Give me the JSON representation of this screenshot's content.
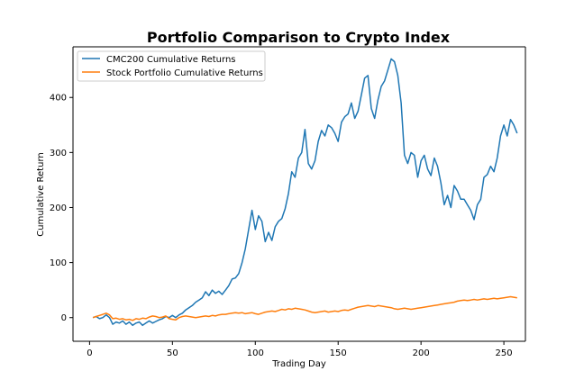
{
  "chart_data": {
    "type": "line",
    "title": "Portfolio Comparison to Crypto Index",
    "xlabel": "Trading Day",
    "ylabel": "Cumulative Return",
    "xlim": [
      -10,
      263
    ],
    "ylim": [
      -43,
      492
    ],
    "xticks": [
      0,
      50,
      100,
      150,
      200,
      250
    ],
    "yticks": [
      0,
      100,
      200,
      300,
      400
    ],
    "grid": false,
    "legend_position": "top-left",
    "series": [
      {
        "name": "CMC200 Cumulative Returns",
        "color": "#1f77b4",
        "points": [
          [
            2,
            0
          ],
          [
            4,
            2
          ],
          [
            6,
            -2
          ],
          [
            8,
            0
          ],
          [
            10,
            5
          ],
          [
            12,
            0
          ],
          [
            14,
            -12
          ],
          [
            16,
            -8
          ],
          [
            18,
            -10
          ],
          [
            20,
            -6
          ],
          [
            22,
            -12
          ],
          [
            24,
            -8
          ],
          [
            26,
            -14
          ],
          [
            28,
            -10
          ],
          [
            30,
            -8
          ],
          [
            32,
            -14
          ],
          [
            34,
            -10
          ],
          [
            36,
            -6
          ],
          [
            38,
            -10
          ],
          [
            40,
            -7
          ],
          [
            42,
            -4
          ],
          [
            44,
            -2
          ],
          [
            46,
            2
          ],
          [
            48,
            0
          ],
          [
            50,
            4
          ],
          [
            52,
            0
          ],
          [
            54,
            5
          ],
          [
            56,
            8
          ],
          [
            58,
            14
          ],
          [
            60,
            18
          ],
          [
            62,
            22
          ],
          [
            64,
            28
          ],
          [
            66,
            32
          ],
          [
            68,
            36
          ],
          [
            70,
            47
          ],
          [
            72,
            40
          ],
          [
            74,
            50
          ],
          [
            76,
            44
          ],
          [
            78,
            48
          ],
          [
            80,
            42
          ],
          [
            82,
            50
          ],
          [
            84,
            58
          ],
          [
            86,
            70
          ],
          [
            88,
            72
          ],
          [
            90,
            80
          ],
          [
            92,
            100
          ],
          [
            94,
            125
          ],
          [
            96,
            160
          ],
          [
            98,
            195
          ],
          [
            100,
            160
          ],
          [
            102,
            185
          ],
          [
            104,
            175
          ],
          [
            106,
            138
          ],
          [
            108,
            155
          ],
          [
            110,
            140
          ],
          [
            112,
            165
          ],
          [
            114,
            175
          ],
          [
            116,
            180
          ],
          [
            118,
            198
          ],
          [
            120,
            225
          ],
          [
            122,
            265
          ],
          [
            124,
            255
          ],
          [
            126,
            290
          ],
          [
            128,
            300
          ],
          [
            130,
            342
          ],
          [
            132,
            280
          ],
          [
            134,
            270
          ],
          [
            136,
            285
          ],
          [
            138,
            320
          ],
          [
            140,
            340
          ],
          [
            142,
            330
          ],
          [
            144,
            350
          ],
          [
            146,
            345
          ],
          [
            148,
            335
          ],
          [
            150,
            320
          ],
          [
            152,
            355
          ],
          [
            154,
            365
          ],
          [
            156,
            370
          ],
          [
            158,
            390
          ],
          [
            160,
            362
          ],
          [
            162,
            375
          ],
          [
            164,
            405
          ],
          [
            166,
            435
          ],
          [
            168,
            440
          ],
          [
            170,
            380
          ],
          [
            172,
            362
          ],
          [
            174,
            395
          ],
          [
            176,
            420
          ],
          [
            178,
            430
          ],
          [
            180,
            450
          ],
          [
            182,
            470
          ],
          [
            184,
            465
          ],
          [
            186,
            440
          ],
          [
            188,
            390
          ],
          [
            190,
            295
          ],
          [
            192,
            280
          ],
          [
            194,
            300
          ],
          [
            196,
            295
          ],
          [
            198,
            255
          ],
          [
            200,
            285
          ],
          [
            202,
            295
          ],
          [
            204,
            270
          ],
          [
            206,
            258
          ],
          [
            208,
            290
          ],
          [
            210,
            275
          ],
          [
            212,
            245
          ],
          [
            214,
            205
          ],
          [
            216,
            222
          ],
          [
            218,
            200
          ],
          [
            220,
            240
          ],
          [
            222,
            230
          ],
          [
            224,
            215
          ],
          [
            226,
            215
          ],
          [
            228,
            205
          ],
          [
            230,
            195
          ],
          [
            232,
            178
          ],
          [
            234,
            205
          ],
          [
            236,
            215
          ],
          [
            238,
            255
          ],
          [
            240,
            260
          ],
          [
            242,
            275
          ],
          [
            244,
            265
          ],
          [
            246,
            290
          ],
          [
            248,
            330
          ],
          [
            250,
            350
          ],
          [
            252,
            330
          ],
          [
            254,
            360
          ],
          [
            256,
            350
          ],
          [
            258,
            335
          ]
        ]
      },
      {
        "name": "Stock Portfolio Cumulative Returns",
        "color": "#ff7f0e",
        "points": [
          [
            2,
            0
          ],
          [
            4,
            2
          ],
          [
            6,
            4
          ],
          [
            8,
            6
          ],
          [
            10,
            8
          ],
          [
            12,
            5
          ],
          [
            14,
            -2
          ],
          [
            16,
            -1
          ],
          [
            18,
            -3
          ],
          [
            20,
            -2
          ],
          [
            22,
            -4
          ],
          [
            24,
            -3
          ],
          [
            26,
            -5
          ],
          [
            28,
            -2
          ],
          [
            30,
            -3
          ],
          [
            32,
            -1
          ],
          [
            34,
            -2
          ],
          [
            36,
            1
          ],
          [
            38,
            3
          ],
          [
            40,
            2
          ],
          [
            42,
            0
          ],
          [
            44,
            1
          ],
          [
            46,
            3
          ],
          [
            48,
            -2
          ],
          [
            50,
            -3
          ],
          [
            52,
            -4
          ],
          [
            54,
            0
          ],
          [
            56,
            2
          ],
          [
            58,
            3
          ],
          [
            60,
            2
          ],
          [
            62,
            1
          ],
          [
            64,
            0
          ],
          [
            66,
            1
          ],
          [
            68,
            2
          ],
          [
            70,
            3
          ],
          [
            72,
            2
          ],
          [
            74,
            4
          ],
          [
            76,
            3
          ],
          [
            78,
            5
          ],
          [
            80,
            6
          ],
          [
            82,
            6
          ],
          [
            84,
            7
          ],
          [
            86,
            8
          ],
          [
            88,
            9
          ],
          [
            90,
            8
          ],
          [
            92,
            9
          ],
          [
            94,
            7
          ],
          [
            96,
            8
          ],
          [
            98,
            9
          ],
          [
            100,
            7
          ],
          [
            102,
            6
          ],
          [
            104,
            8
          ],
          [
            106,
            10
          ],
          [
            108,
            11
          ],
          [
            110,
            12
          ],
          [
            112,
            11
          ],
          [
            114,
            13
          ],
          [
            116,
            15
          ],
          [
            118,
            14
          ],
          [
            120,
            16
          ],
          [
            122,
            15
          ],
          [
            124,
            17
          ],
          [
            126,
            16
          ],
          [
            128,
            15
          ],
          [
            130,
            14
          ],
          [
            132,
            12
          ],
          [
            134,
            10
          ],
          [
            136,
            9
          ],
          [
            138,
            10
          ],
          [
            140,
            11
          ],
          [
            142,
            12
          ],
          [
            144,
            10
          ],
          [
            146,
            11
          ],
          [
            148,
            12
          ],
          [
            150,
            11
          ],
          [
            152,
            13
          ],
          [
            154,
            14
          ],
          [
            156,
            13
          ],
          [
            158,
            15
          ],
          [
            160,
            17
          ],
          [
            162,
            19
          ],
          [
            164,
            20
          ],
          [
            166,
            21
          ],
          [
            168,
            22
          ],
          [
            170,
            21
          ],
          [
            172,
            20
          ],
          [
            174,
            22
          ],
          [
            176,
            21
          ],
          [
            178,
            20
          ],
          [
            180,
            19
          ],
          [
            182,
            18
          ],
          [
            184,
            16
          ],
          [
            186,
            15
          ],
          [
            188,
            16
          ],
          [
            190,
            17
          ],
          [
            192,
            16
          ],
          [
            194,
            15
          ],
          [
            196,
            16
          ],
          [
            198,
            17
          ],
          [
            200,
            18
          ],
          [
            202,
            19
          ],
          [
            204,
            20
          ],
          [
            206,
            21
          ],
          [
            208,
            22
          ],
          [
            210,
            23
          ],
          [
            212,
            24
          ],
          [
            214,
            25
          ],
          [
            216,
            26
          ],
          [
            218,
            27
          ],
          [
            220,
            28
          ],
          [
            222,
            30
          ],
          [
            224,
            31
          ],
          [
            226,
            32
          ],
          [
            228,
            31
          ],
          [
            230,
            32
          ],
          [
            232,
            33
          ],
          [
            234,
            32
          ],
          [
            236,
            33
          ],
          [
            238,
            34
          ],
          [
            240,
            33
          ],
          [
            242,
            34
          ],
          [
            244,
            35
          ],
          [
            246,
            34
          ],
          [
            248,
            35
          ],
          [
            250,
            36
          ],
          [
            252,
            37
          ],
          [
            254,
            38
          ],
          [
            256,
            37
          ],
          [
            258,
            36
          ]
        ]
      }
    ]
  }
}
